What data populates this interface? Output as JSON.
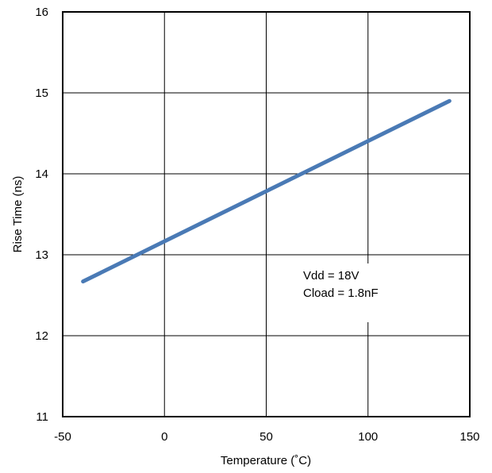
{
  "chart_data": {
    "type": "line",
    "title": "",
    "xlabel": "Temperature (˚C)",
    "ylabel": "Rise Time (ns)",
    "xlim": [
      -50,
      150
    ],
    "ylim": [
      11,
      16
    ],
    "x_ticks": [
      -50,
      0,
      50,
      100,
      150
    ],
    "y_ticks": [
      11,
      12,
      13,
      14,
      15,
      16
    ],
    "grid": true,
    "series": [
      {
        "color": "#4a7ab5",
        "x": [
          -40,
          140
        ],
        "y": [
          12.67,
          14.9
        ]
      }
    ],
    "annotation": {
      "lines": [
        "Vdd = 18V",
        "Cload = 1.8nF"
      ]
    }
  }
}
